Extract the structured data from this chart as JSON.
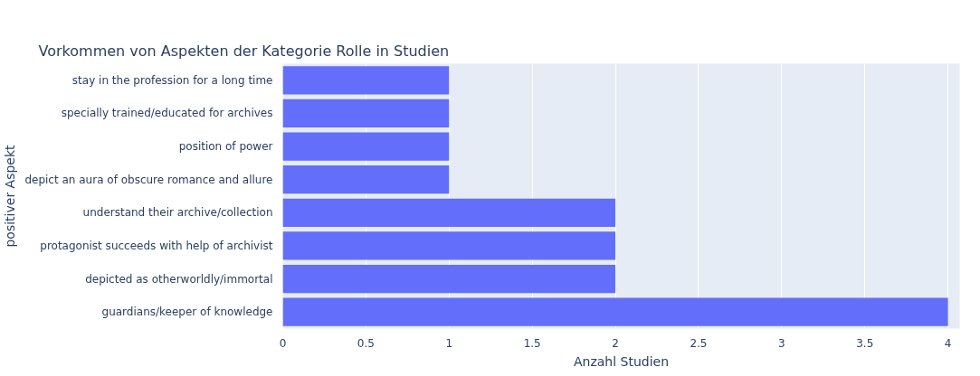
{
  "chart_data": {
    "type": "bar",
    "orientation": "horizontal",
    "title": "Vorkommen von Aspekten der Kategorie Rolle in Studien",
    "xlabel": "Anzahl Studien",
    "ylabel": "positiver Aspekt",
    "categories": [
      "stay in the profession for a long time",
      "specially trained/educated for archives",
      "position of power",
      "depict an aura of obscure romance and allure",
      "understand their archive/collection",
      "protagonist succeeds with help of archivist",
      "depicted as otherworldly/immortal",
      "guardians/keeper of knowledge"
    ],
    "values": [
      1,
      1,
      1,
      1,
      2,
      2,
      2,
      4
    ],
    "color": "#636efa",
    "xlim": [
      0,
      4.07
    ],
    "xticks": [
      0,
      0.5,
      1,
      1.5,
      2,
      2.5,
      3,
      3.5,
      4
    ],
    "grid": "x"
  }
}
